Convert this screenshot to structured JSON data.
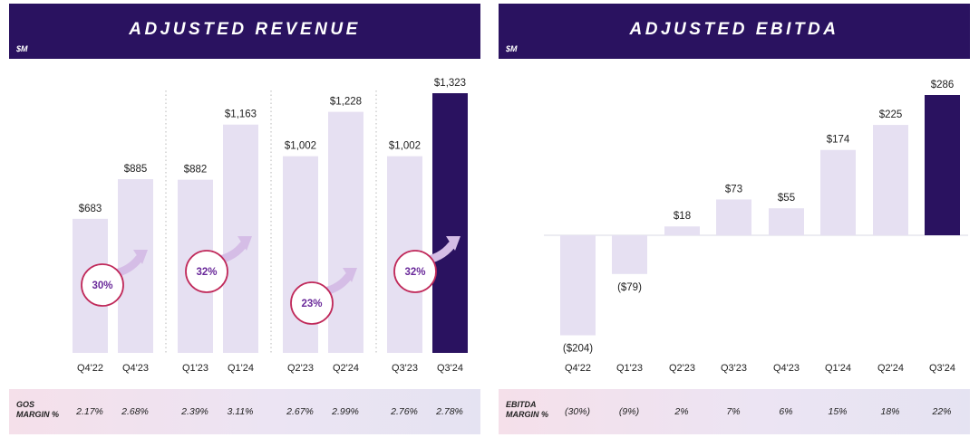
{
  "chart_data": [
    {
      "type": "bar",
      "title": "ADJUSTED REVENUE",
      "unit": "$M",
      "categories": [
        "Q4'22",
        "Q4'23",
        "Q1'23",
        "Q1'24",
        "Q2'23",
        "Q2'24",
        "Q3'23",
        "Q3'24"
      ],
      "values": [
        683,
        885,
        882,
        1163,
        1002,
        1228,
        1002,
        1323
      ],
      "value_labels": [
        "$683",
        "$885",
        "$882",
        "$1,163",
        "$1,002",
        "$1,228",
        "$1,002",
        "$1,323"
      ],
      "highlight_index": 7,
      "growth_annotations": [
        "30%",
        "32%",
        "23%",
        "32%"
      ],
      "margin_row": {
        "label_line1": "GOS",
        "label_line2": "MARGIN %",
        "values": [
          "2.17%",
          "2.68%",
          "2.39%",
          "3.11%",
          "2.67%",
          "2.99%",
          "2.76%",
          "2.78%"
        ]
      },
      "ylim": [
        0,
        1400
      ]
    },
    {
      "type": "bar",
      "title": "ADJUSTED EBITDA",
      "unit": "$M",
      "categories": [
        "Q4'22",
        "Q1'23",
        "Q2'23",
        "Q3'23",
        "Q4'23",
        "Q1'24",
        "Q2'24",
        "Q3'24"
      ],
      "values": [
        -204,
        -79,
        18,
        73,
        55,
        174,
        225,
        286
      ],
      "value_labels": [
        "($204)",
        "($79)",
        "$18",
        "$73",
        "$55",
        "$174",
        "$225",
        "$286"
      ],
      "highlight_index": 7,
      "margin_row": {
        "label_line1": "EBITDA",
        "label_line2": "MARGIN %",
        "values": [
          "(30%)",
          "(9%)",
          "2%",
          "7%",
          "6%",
          "15%",
          "18%",
          "22%"
        ]
      },
      "ylim": [
        -204,
        286
      ]
    }
  ],
  "colors": {
    "header": "#2a1260",
    "bar": "#e6e0f2",
    "highlight": "#2a1260",
    "circle_border": "#c0295a",
    "circle_text": "#6a2a9a",
    "arrow": "#d5bde6"
  }
}
